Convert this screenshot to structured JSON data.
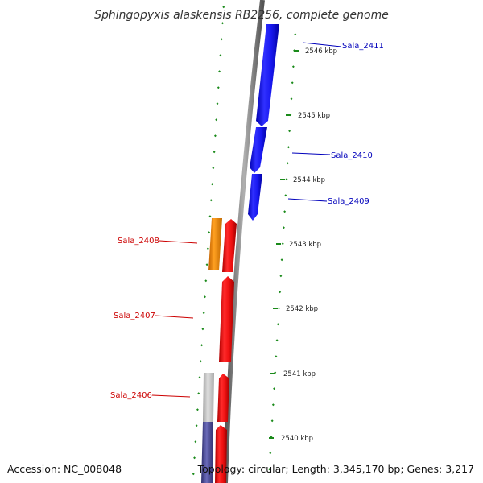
{
  "title": "Sphingopyxis alaskensis RB2256, complete genome",
  "footer": {
    "accession": "Accession: NC_008048",
    "topology": "Topology: circular; Length: 3,345,170 bp; Genes: 3,217"
  },
  "ticks": [
    "2546 kbp",
    "2545 kbp",
    "2544 kbp",
    "2543 kbp",
    "2542 kbp",
    "2541 kbp",
    "2540 kbp"
  ],
  "genes": [
    {
      "id": "Sala_2411",
      "label": "Sala_2411",
      "strand": "forward",
      "color": "#1010ee"
    },
    {
      "id": "Sala_2410",
      "label": "Sala_2410",
      "strand": "forward",
      "color": "#1010ee"
    },
    {
      "id": "Sala_2409",
      "label": "Sala_2409",
      "strand": "forward",
      "color": "#1010ee"
    },
    {
      "id": "Sala_2408",
      "label": "Sala_2408",
      "strand": "reverse",
      "color": "#dd0000"
    },
    {
      "id": "Sala_2407",
      "label": "Sala_2407",
      "strand": "reverse",
      "color": "#dd0000"
    },
    {
      "id": "Sala_2406",
      "label": "Sala_2406",
      "strand": "reverse",
      "color": "#dd0000"
    }
  ],
  "colors": {
    "forward_label": "#0000bb",
    "reverse_label": "#cc0000",
    "tick": "#1a8a1a",
    "backbone": "#888888",
    "cog_orange": "#ee8800",
    "cog_gray": "#c0c0c0",
    "cog_purple": "#5555a0"
  }
}
